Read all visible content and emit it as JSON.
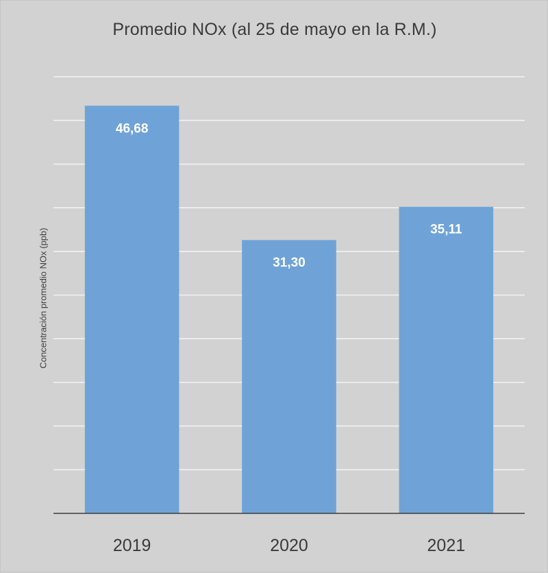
{
  "chart_data": {
    "type": "bar",
    "title": "Promedio  NOx  (al 25 de mayo en la R.M.)",
    "ylabel": "Concentración  promedio NOx  (ppb)",
    "xlabel": "",
    "categories": [
      "2019",
      "2020",
      "2021"
    ],
    "values": [
      46.68,
      31.3,
      35.11
    ],
    "data_labels": [
      "46,68",
      "31,30",
      "35,11"
    ],
    "ylim": [
      0,
      50
    ],
    "y_tick_step": 5,
    "y_tick_labels_shown": false,
    "grid": true,
    "legend": "none",
    "colors": {
      "bar": "#6fa3d8",
      "gridline": "#f2f2f2",
      "axis": "#3c3c3c",
      "background": "#d2d2d2",
      "data_label": "#ffffff"
    }
  }
}
